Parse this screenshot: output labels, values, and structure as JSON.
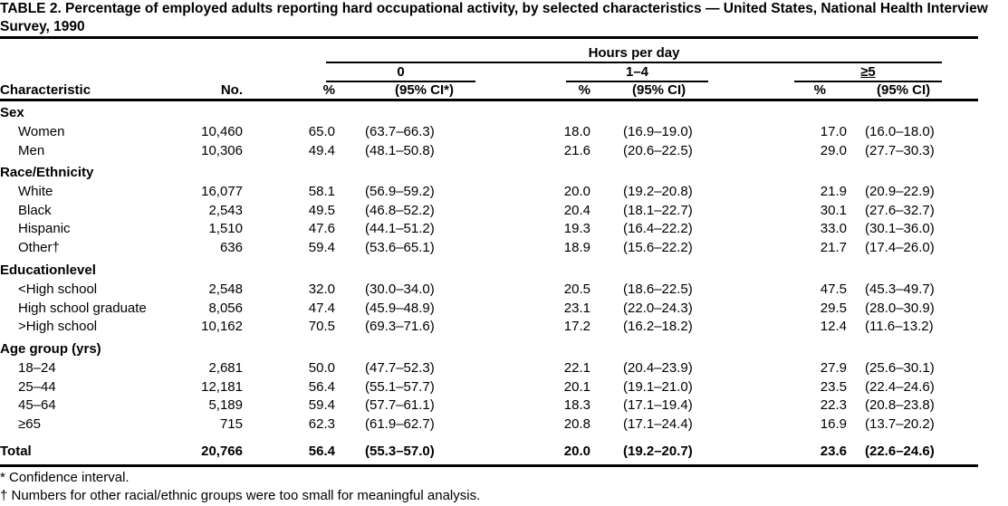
{
  "title": "TABLE 2. Percentage of employed adults reporting hard occupational activity, by selected characteristics — United States, National Health Interview Survey, 1990",
  "header": {
    "spanner": "Hours per day",
    "groups": [
      "0",
      "1–4",
      "≥5"
    ],
    "characteristic": "Characteristic",
    "no": "No.",
    "pct": "%",
    "ci_first": "(95% CI*)",
    "ci": "(95% CI)"
  },
  "sections": [
    {
      "label": "Sex",
      "rows": [
        {
          "label": "Women",
          "no": "10,460",
          "v": [
            "65.0",
            "(63.7–66.3)",
            "18.0",
            "(16.9–19.0)",
            "17.0",
            "(16.0–18.0)"
          ]
        },
        {
          "label": "Men",
          "no": "10,306",
          "v": [
            "49.4",
            "(48.1–50.8)",
            "21.6",
            "(20.6–22.5)",
            "29.0",
            "(27.7–30.3)"
          ]
        }
      ]
    },
    {
      "label": "Race/Ethnicity",
      "rows": [
        {
          "label": "White",
          "no": "16,077",
          "v": [
            "58.1",
            "(56.9–59.2)",
            "20.0",
            "(19.2–20.8)",
            "21.9",
            "(20.9–22.9)"
          ]
        },
        {
          "label": "Black",
          "no": "2,543",
          "v": [
            "49.5",
            "(46.8–52.2)",
            "20.4",
            "(18.1–22.7)",
            "30.1",
            "(27.6–32.7)"
          ]
        },
        {
          "label": "Hispanic",
          "no": "1,510",
          "v": [
            "47.6",
            "(44.1–51.2)",
            "19.3",
            "(16.4–22.2)",
            "33.0",
            "(30.1–36.0)"
          ]
        },
        {
          "label": "Other†",
          "no": "636",
          "v": [
            "59.4",
            "(53.6–65.1)",
            "18.9",
            "(15.6–22.2)",
            "21.7",
            "(17.4–26.0)"
          ]
        }
      ]
    },
    {
      "label": "Educationlevel",
      "rows": [
        {
          "label": "<High school",
          "no": "2,548",
          "v": [
            "32.0",
            "(30.0–34.0)",
            "20.5",
            "(18.6–22.5)",
            "47.5",
            "(45.3–49.7)"
          ]
        },
        {
          "label": "High school graduate",
          "no": "8,056",
          "v": [
            "47.4",
            "(45.9–48.9)",
            "23.1",
            "(22.0–24.3)",
            "29.5",
            "(28.0–30.9)"
          ]
        },
        {
          "label": ">High school",
          "no": "10,162",
          "v": [
            "70.5",
            "(69.3–71.6)",
            "17.2",
            "(16.2–18.2)",
            "12.4",
            "(11.6–13.2)"
          ]
        }
      ]
    },
    {
      "label": "Age group (yrs)",
      "rows": [
        {
          "label": "18–24",
          "no": "2,681",
          "v": [
            "50.0",
            "(47.7–52.3)",
            "22.1",
            "(20.4–23.9)",
            "27.9",
            "(25.6–30.1)"
          ]
        },
        {
          "label": "25–44",
          "no": "12,181",
          "v": [
            "56.4",
            "(55.1–57.7)",
            "20.1",
            "(19.1–21.0)",
            "23.5",
            "(22.4–24.6)"
          ]
        },
        {
          "label": "45–64",
          "no": "5,189",
          "v": [
            "59.4",
            "(57.7–61.1)",
            "18.3",
            "(17.1–19.4)",
            "22.3",
            "(20.8–23.8)"
          ]
        },
        {
          "label": " ≥65",
          "no": "715",
          "v": [
            "62.3",
            "(61.9–62.7)",
            "20.8",
            "(17.1–24.4)",
            "16.9",
            "(13.7–20.2)"
          ]
        }
      ]
    }
  ],
  "total": {
    "label": "Total",
    "no": "20,766",
    "v": [
      "56.4",
      "(55.3–57.0)",
      "20.0",
      "(19.2–20.7)",
      "23.6",
      "(22.6–24.6)"
    ]
  },
  "footnotes": [
    "* Confidence interval.",
    "† Numbers for other racial/ethnic groups were too small for meaningful analysis."
  ]
}
